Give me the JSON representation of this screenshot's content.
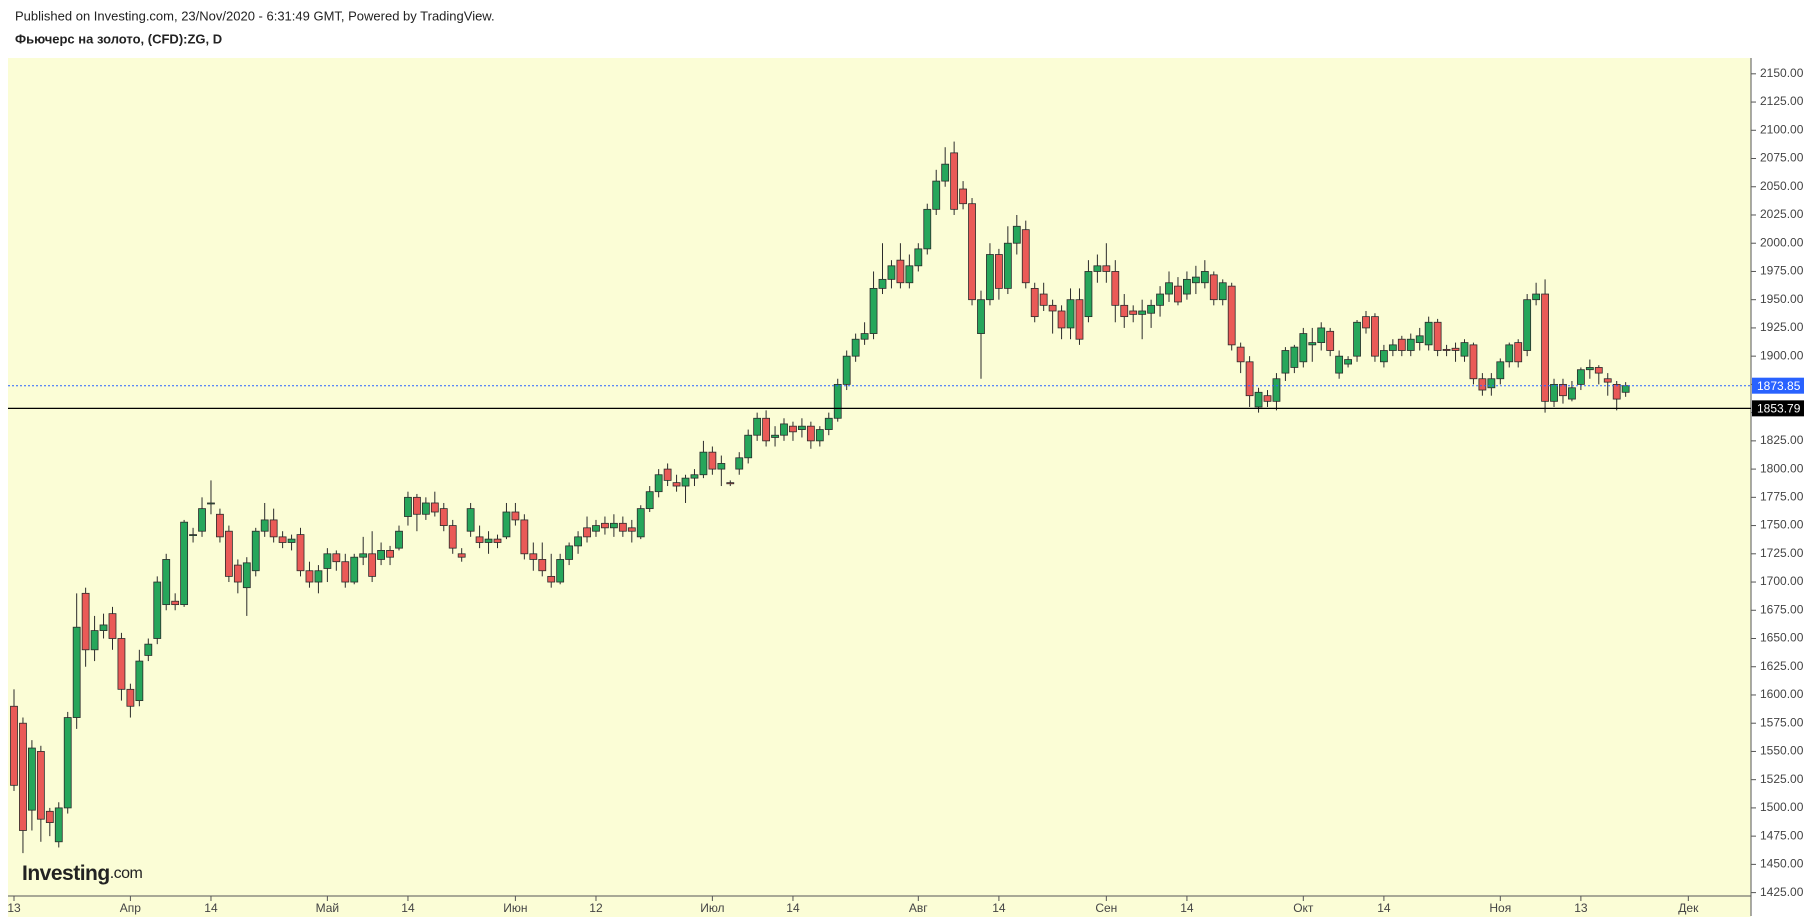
{
  "logo": {
    "name": "Investing",
    "suffix": ".com"
  },
  "chart_data": {
    "type": "candlestick",
    "subtitle": "Published on Investing.com, 23/Nov/2020 - 6:31:49 GMT, Powered by TradingView.",
    "title": "Фьючерс на золото, (CFD):ZG, D",
    "up_color": "#26a65b",
    "down_color": "#ea5a57",
    "border_color": "#2b2b2b",
    "background": "#fbfdd6",
    "grid": false,
    "ylim": [
      1422,
      2164
    ],
    "yticks": [
      {
        "value": 1425,
        "label": "1425.00"
      },
      {
        "value": 1450,
        "label": "1450.00"
      },
      {
        "value": 1475,
        "label": "1475.00"
      },
      {
        "value": 1500,
        "label": "1500.00"
      },
      {
        "value": 1525,
        "label": "1525.00"
      },
      {
        "value": 1550,
        "label": "1550.00"
      },
      {
        "value": 1575,
        "label": "1575.00"
      },
      {
        "value": 1600,
        "label": "1600.00"
      },
      {
        "value": 1625,
        "label": "1625.00"
      },
      {
        "value": 1650,
        "label": "1650.00"
      },
      {
        "value": 1675,
        "label": "1675.00"
      },
      {
        "value": 1700,
        "label": "1700.00"
      },
      {
        "value": 1725,
        "label": "1725.00"
      },
      {
        "value": 1750,
        "label": "1750.00"
      },
      {
        "value": 1775,
        "label": "1775.00"
      },
      {
        "value": 1800,
        "label": "1800.00"
      },
      {
        "value": 1825,
        "label": "1825.00"
      },
      {
        "value": 1850,
        "label": "1850.00"
      },
      {
        "value": 1875,
        "label": "1875.00"
      },
      {
        "value": 1900,
        "label": "1900.00"
      },
      {
        "value": 1925,
        "label": "1925.00"
      },
      {
        "value": 1950,
        "label": "1950.00"
      },
      {
        "value": 1975,
        "label": "1975.00"
      },
      {
        "value": 2000,
        "label": "2000.00"
      },
      {
        "value": 2025,
        "label": "2025.00"
      },
      {
        "value": 2050,
        "label": "2050.00"
      },
      {
        "value": 2075,
        "label": "2075.00"
      },
      {
        "value": 2100,
        "label": "2100.00"
      },
      {
        "value": 2125,
        "label": "2125.00"
      },
      {
        "value": 2150,
        "label": "2150.00"
      }
    ],
    "xlim": [
      -0.67,
      194
    ],
    "xticks": [
      {
        "value": 0,
        "label": "13"
      },
      {
        "value": 13,
        "label": "Апр"
      },
      {
        "value": 22,
        "label": "14"
      },
      {
        "value": 35,
        "label": "Май"
      },
      {
        "value": 44,
        "label": "14"
      },
      {
        "value": 56,
        "label": "Июн"
      },
      {
        "value": 65,
        "label": "12"
      },
      {
        "value": 78,
        "label": "Июл"
      },
      {
        "value": 87,
        "label": "14"
      },
      {
        "value": 101,
        "label": "Авг"
      },
      {
        "value": 110,
        "label": "14"
      },
      {
        "value": 122,
        "label": "Сен"
      },
      {
        "value": 131,
        "label": "14"
      },
      {
        "value": 144,
        "label": "Окт"
      },
      {
        "value": 153,
        "label": "14"
      },
      {
        "value": 166,
        "label": "Ноя"
      },
      {
        "value": 175,
        "label": "13"
      },
      {
        "value": 187,
        "label": "Дек"
      }
    ],
    "hlines": [
      {
        "value": 1873.85,
        "color": "#2962ff",
        "dashed": true
      },
      {
        "value": 1853.79,
        "color": "#000000",
        "dashed": false
      }
    ],
    "ohlc": [
      [
        1590,
        1605,
        1515,
        1520
      ],
      [
        1575,
        1580,
        1460,
        1480
      ],
      [
        1498,
        1560,
        1480,
        1553
      ],
      [
        1550,
        1555,
        1470,
        1490
      ],
      [
        1497,
        1500,
        1475,
        1487
      ],
      [
        1470,
        1505,
        1465,
        1500
      ],
      [
        1500,
        1585,
        1495,
        1580
      ],
      [
        1580,
        1690,
        1570,
        1660
      ],
      [
        1690,
        1695,
        1625,
        1640
      ],
      [
        1640,
        1670,
        1630,
        1657
      ],
      [
        1657,
        1672,
        1650,
        1662
      ],
      [
        1672,
        1678,
        1640,
        1650
      ],
      [
        1650,
        1655,
        1595,
        1605
      ],
      [
        1605,
        1610,
        1580,
        1590
      ],
      [
        1595,
        1640,
        1590,
        1630
      ],
      [
        1635,
        1650,
        1630,
        1645
      ],
      [
        1650,
        1705,
        1645,
        1700
      ],
      [
        1680,
        1725,
        1675,
        1720
      ],
      [
        1683,
        1690,
        1675,
        1680
      ],
      [
        1680,
        1755,
        1678,
        1753
      ],
      [
        1742,
        1748,
        1735,
        1742
      ],
      [
        1745,
        1775,
        1740,
        1765
      ],
      [
        1770,
        1790,
        1760,
        1770
      ],
      [
        1760,
        1765,
        1735,
        1740
      ],
      [
        1745,
        1750,
        1700,
        1705
      ],
      [
        1715,
        1720,
        1690,
        1700
      ],
      [
        1695,
        1722,
        1670,
        1717
      ],
      [
        1710,
        1748,
        1705,
        1745
      ],
      [
        1745,
        1770,
        1740,
        1755
      ],
      [
        1755,
        1765,
        1735,
        1740
      ],
      [
        1740,
        1745,
        1730,
        1735
      ],
      [
        1735,
        1742,
        1728,
        1738
      ],
      [
        1742,
        1748,
        1705,
        1710
      ],
      [
        1710,
        1718,
        1695,
        1700
      ],
      [
        1700,
        1715,
        1690,
        1710
      ],
      [
        1712,
        1730,
        1700,
        1725
      ],
      [
        1725,
        1728,
        1710,
        1718
      ],
      [
        1718,
        1725,
        1695,
        1700
      ],
      [
        1700,
        1725,
        1698,
        1722
      ],
      [
        1722,
        1740,
        1715,
        1725
      ],
      [
        1725,
        1745,
        1700,
        1705
      ],
      [
        1720,
        1735,
        1715,
        1728
      ],
      [
        1728,
        1732,
        1715,
        1722
      ],
      [
        1730,
        1750,
        1728,
        1745
      ],
      [
        1758,
        1780,
        1750,
        1775
      ],
      [
        1775,
        1778,
        1745,
        1760
      ],
      [
        1760,
        1775,
        1755,
        1770
      ],
      [
        1770,
        1780,
        1758,
        1762
      ],
      [
        1765,
        1770,
        1745,
        1750
      ],
      [
        1750,
        1755,
        1725,
        1730
      ],
      [
        1725,
        1730,
        1718,
        1722
      ],
      [
        1745,
        1770,
        1740,
        1765
      ],
      [
        1740,
        1750,
        1730,
        1735
      ],
      [
        1735,
        1745,
        1725,
        1738
      ],
      [
        1738,
        1742,
        1730,
        1735
      ],
      [
        1740,
        1770,
        1738,
        1762
      ],
      [
        1762,
        1770,
        1750,
        1755
      ],
      [
        1755,
        1760,
        1720,
        1725
      ],
      [
        1725,
        1735,
        1710,
        1720
      ],
      [
        1720,
        1735,
        1705,
        1710
      ],
      [
        1705,
        1725,
        1695,
        1700
      ],
      [
        1700,
        1725,
        1698,
        1720
      ],
      [
        1720,
        1735,
        1715,
        1732
      ],
      [
        1732,
        1745,
        1725,
        1740
      ],
      [
        1748,
        1758,
        1735,
        1740
      ],
      [
        1745,
        1755,
        1740,
        1750
      ],
      [
        1752,
        1758,
        1742,
        1748
      ],
      [
        1748,
        1760,
        1740,
        1752
      ],
      [
        1752,
        1758,
        1740,
        1745
      ],
      [
        1748,
        1755,
        1735,
        1745
      ],
      [
        1740,
        1768,
        1738,
        1765
      ],
      [
        1765,
        1785,
        1762,
        1780
      ],
      [
        1780,
        1800,
        1775,
        1795
      ],
      [
        1800,
        1805,
        1785,
        1790
      ],
      [
        1788,
        1795,
        1780,
        1785
      ],
      [
        1785,
        1795,
        1770,
        1792
      ],
      [
        1792,
        1800,
        1785,
        1795
      ],
      [
        1795,
        1825,
        1792,
        1815
      ],
      [
        1815,
        1820,
        1795,
        1800
      ],
      [
        1800,
        1812,
        1785,
        1805
      ],
      [
        1788,
        1790,
        1785,
        1787
      ],
      [
        1800,
        1815,
        1795,
        1810
      ],
      [
        1810,
        1835,
        1805,
        1830
      ],
      [
        1830,
        1850,
        1825,
        1845
      ],
      [
        1845,
        1852,
        1820,
        1825
      ],
      [
        1828,
        1838,
        1820,
        1830
      ],
      [
        1830,
        1845,
        1825,
        1840
      ],
      [
        1838,
        1842,
        1825,
        1833
      ],
      [
        1835,
        1845,
        1828,
        1838
      ],
      [
        1838,
        1842,
        1818,
        1825
      ],
      [
        1825,
        1838,
        1820,
        1835
      ],
      [
        1835,
        1850,
        1830,
        1845
      ],
      [
        1845,
        1880,
        1842,
        1875
      ],
      [
        1875,
        1905,
        1870,
        1900
      ],
      [
        1900,
        1920,
        1895,
        1915
      ],
      [
        1915,
        1930,
        1910,
        1920
      ],
      [
        1920,
        1975,
        1915,
        1960
      ],
      [
        1960,
        2000,
        1955,
        1968
      ],
      [
        1968,
        1985,
        1960,
        1980
      ],
      [
        1985,
        2000,
        1960,
        1965
      ],
      [
        1965,
        1990,
        1960,
        1980
      ],
      [
        1980,
        2000,
        1975,
        1995
      ],
      [
        1995,
        2035,
        1990,
        2030
      ],
      [
        2030,
        2065,
        2025,
        2055
      ],
      [
        2055,
        2085,
        2050,
        2070
      ],
      [
        2080,
        2090,
        2025,
        2030
      ],
      [
        2048,
        2055,
        2030,
        2035
      ],
      [
        2035,
        2040,
        1945,
        1950
      ],
      [
        1920,
        1958,
        1880,
        1950
      ],
      [
        1950,
        2000,
        1945,
        1990
      ],
      [
        1990,
        1995,
        1950,
        1960
      ],
      [
        1960,
        2015,
        1955,
        2000
      ],
      [
        2000,
        2025,
        1990,
        2015
      ],
      [
        2012,
        2020,
        1960,
        1965
      ],
      [
        1960,
        1965,
        1930,
        1935
      ],
      [
        1955,
        1965,
        1940,
        1945
      ],
      [
        1945,
        1950,
        1920,
        1940
      ],
      [
        1940,
        1945,
        1915,
        1925
      ],
      [
        1925,
        1960,
        1915,
        1950
      ],
      [
        1950,
        1960,
        1910,
        1915
      ],
      [
        1935,
        1985,
        1930,
        1975
      ],
      [
        1975,
        1990,
        1965,
        1980
      ],
      [
        1980,
        2000,
        1965,
        1975
      ],
      [
        1975,
        1985,
        1930,
        1945
      ],
      [
        1945,
        1955,
        1925,
        1935
      ],
      [
        1940,
        1945,
        1930,
        1937
      ],
      [
        1937,
        1950,
        1915,
        1940
      ],
      [
        1938,
        1950,
        1925,
        1945
      ],
      [
        1945,
        1962,
        1935,
        1955
      ],
      [
        1955,
        1975,
        1948,
        1965
      ],
      [
        1962,
        1970,
        1945,
        1948
      ],
      [
        1955,
        1975,
        1950,
        1968
      ],
      [
        1965,
        1980,
        1955,
        1970
      ],
      [
        1965,
        1985,
        1960,
        1975
      ],
      [
        1972,
        1975,
        1945,
        1950
      ],
      [
        1950,
        1968,
        1945,
        1965
      ],
      [
        1962,
        1965,
        1905,
        1910
      ],
      [
        1908,
        1912,
        1885,
        1895
      ],
      [
        1895,
        1900,
        1855,
        1865
      ],
      [
        1855,
        1872,
        1850,
        1868
      ],
      [
        1865,
        1870,
        1855,
        1860
      ],
      [
        1860,
        1885,
        1852,
        1880
      ],
      [
        1885,
        1908,
        1878,
        1905
      ],
      [
        1890,
        1910,
        1885,
        1908
      ],
      [
        1895,
        1925,
        1890,
        1920
      ],
      [
        1910,
        1925,
        1895,
        1912
      ],
      [
        1912,
        1930,
        1905,
        1925
      ],
      [
        1922,
        1925,
        1900,
        1905
      ],
      [
        1885,
        1905,
        1880,
        1900
      ],
      [
        1893,
        1900,
        1890,
        1897
      ],
      [
        1900,
        1932,
        1895,
        1930
      ],
      [
        1935,
        1940,
        1920,
        1925
      ],
      [
        1935,
        1938,
        1895,
        1900
      ],
      [
        1895,
        1910,
        1890,
        1905
      ],
      [
        1905,
        1915,
        1900,
        1910
      ],
      [
        1915,
        1918,
        1900,
        1905
      ],
      [
        1905,
        1920,
        1900,
        1915
      ],
      [
        1912,
        1925,
        1905,
        1918
      ],
      [
        1910,
        1935,
        1905,
        1930
      ],
      [
        1930,
        1933,
        1900,
        1905
      ],
      [
        1906,
        1910,
        1900,
        1905
      ],
      [
        1907,
        1912,
        1895,
        1905
      ],
      [
        1900,
        1915,
        1895,
        1912
      ],
      [
        1910,
        1912,
        1875,
        1880
      ],
      [
        1880,
        1885,
        1865,
        1870
      ],
      [
        1872,
        1885,
        1865,
        1880
      ],
      [
        1880,
        1898,
        1875,
        1895
      ],
      [
        1895,
        1912,
        1890,
        1910
      ],
      [
        1912,
        1915,
        1890,
        1895
      ],
      [
        1905,
        1955,
        1900,
        1950
      ],
      [
        1950,
        1965,
        1945,
        1955
      ],
      [
        1955,
        1968,
        1850,
        1860
      ],
      [
        1860,
        1880,
        1855,
        1875
      ],
      [
        1875,
        1880,
        1858,
        1865
      ],
      [
        1862,
        1878,
        1860,
        1872
      ],
      [
        1875,
        1890,
        1870,
        1888
      ],
      [
        1888,
        1897,
        1880,
        1890
      ],
      [
        1890,
        1892,
        1875,
        1885
      ],
      [
        1880,
        1885,
        1865,
        1877
      ],
      [
        1875,
        1878,
        1852,
        1862
      ],
      [
        1868,
        1877,
        1864,
        1873.85
      ]
    ]
  }
}
